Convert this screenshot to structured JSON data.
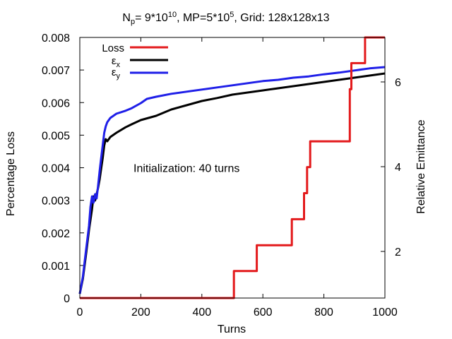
{
  "chart_data": {
    "type": "line",
    "title_parts": {
      "n_prefix": "N",
      "n_sub": "p",
      "n_value": "= 9*10",
      "n_exp": "10",
      "mp_value": ", MP=5*10",
      "mp_exp": "5",
      "grid": ", Grid: 128x128x13"
    },
    "xlabel": "Turns",
    "ylabel": "Percentage Loss",
    "y2label": "Relative Emittance",
    "xlim": [
      0,
      1000
    ],
    "ylim": [
      0,
      0.008
    ],
    "y2lim": [
      0.9,
      7.05
    ],
    "x_ticks": [
      {
        "value": 0,
        "label": "0"
      },
      {
        "value": 200,
        "label": "200"
      },
      {
        "value": 400,
        "label": "400"
      },
      {
        "value": 600,
        "label": "600"
      },
      {
        "value": 800,
        "label": "800"
      },
      {
        "value": 1000,
        "label": "1000"
      }
    ],
    "y_ticks": [
      {
        "value": 0,
        "label": "0"
      },
      {
        "value": 0.001,
        "label": "0.001"
      },
      {
        "value": 0.002,
        "label": "0.002"
      },
      {
        "value": 0.003,
        "label": "0.003"
      },
      {
        "value": 0.004,
        "label": "0.004"
      },
      {
        "value": 0.005,
        "label": "0.005"
      },
      {
        "value": 0.006,
        "label": "0.006"
      },
      {
        "value": 0.007,
        "label": "0.007"
      },
      {
        "value": 0.008,
        "label": "0.008"
      }
    ],
    "y2_ticks": [
      {
        "value": 2,
        "label": "2"
      },
      {
        "value": 4,
        "label": "4"
      },
      {
        "value": 6,
        "label": "6"
      }
    ],
    "annotation": {
      "text": "Initialization: 40 turns",
      "x": 350,
      "y": 0.004
    },
    "legend": {
      "position": "top-left",
      "entries": [
        {
          "label": "Loss",
          "sub": "",
          "series": "Loss"
        },
        {
          "label": "ε",
          "sub": "x",
          "series": "εx"
        },
        {
          "label": "ε",
          "sub": "y",
          "series": "εy"
        }
      ]
    },
    "series": [
      {
        "name": "Loss",
        "axis": "y1",
        "color": "#e31a1c",
        "points": [
          [
            0,
            0
          ],
          [
            505,
            0
          ],
          [
            505,
            0.00083
          ],
          [
            580,
            0.00083
          ],
          [
            580,
            0.00162
          ],
          [
            695,
            0.00162
          ],
          [
            695,
            0.00242
          ],
          [
            735,
            0.00242
          ],
          [
            735,
            0.00322
          ],
          [
            745,
            0.00322
          ],
          [
            745,
            0.00402
          ],
          [
            755,
            0.00402
          ],
          [
            755,
            0.00481
          ],
          [
            885,
            0.00481
          ],
          [
            885,
            0.00641
          ],
          [
            890,
            0.00641
          ],
          [
            890,
            0.00721
          ],
          [
            935,
            0.00721
          ],
          [
            935,
            0.008
          ],
          [
            1000,
            0.008
          ]
        ]
      },
      {
        "name": "εx",
        "axis": "y2",
        "color": "#000000",
        "points": [
          [
            0,
            1.0
          ],
          [
            10,
            1.35
          ],
          [
            20,
            1.9
          ],
          [
            30,
            2.5
          ],
          [
            40,
            3.0
          ],
          [
            45,
            3.3
          ],
          [
            50,
            3.2
          ],
          [
            55,
            3.35
          ],
          [
            60,
            3.5
          ],
          [
            65,
            3.7
          ],
          [
            70,
            3.95
          ],
          [
            75,
            4.2
          ],
          [
            80,
            4.5
          ],
          [
            85,
            4.65
          ],
          [
            90,
            4.6
          ],
          [
            100,
            4.7
          ],
          [
            120,
            4.8
          ],
          [
            150,
            4.93
          ],
          [
            170,
            5.0
          ],
          [
            200,
            5.1
          ],
          [
            250,
            5.2
          ],
          [
            300,
            5.35
          ],
          [
            350,
            5.45
          ],
          [
            400,
            5.55
          ],
          [
            450,
            5.62
          ],
          [
            500,
            5.7
          ],
          [
            550,
            5.75
          ],
          [
            600,
            5.8
          ],
          [
            650,
            5.85
          ],
          [
            700,
            5.9
          ],
          [
            750,
            5.95
          ],
          [
            800,
            6.0
          ],
          [
            850,
            6.05
          ],
          [
            900,
            6.1
          ],
          [
            950,
            6.15
          ],
          [
            1000,
            6.2
          ]
        ]
      },
      {
        "name": "εy",
        "axis": "y2",
        "color": "#1f1fe8",
        "points": [
          [
            0,
            1.0
          ],
          [
            10,
            1.4
          ],
          [
            20,
            2.0
          ],
          [
            30,
            2.6
          ],
          [
            35,
            3.05
          ],
          [
            40,
            3.3
          ],
          [
            45,
            3.15
          ],
          [
            50,
            3.35
          ],
          [
            55,
            3.25
          ],
          [
            60,
            3.55
          ],
          [
            65,
            3.9
          ],
          [
            70,
            4.2
          ],
          [
            75,
            4.5
          ],
          [
            80,
            4.8
          ],
          [
            85,
            4.95
          ],
          [
            90,
            5.05
          ],
          [
            100,
            5.15
          ],
          [
            120,
            5.25
          ],
          [
            150,
            5.32
          ],
          [
            170,
            5.38
          ],
          [
            200,
            5.5
          ],
          [
            220,
            5.6
          ],
          [
            250,
            5.65
          ],
          [
            300,
            5.72
          ],
          [
            350,
            5.77
          ],
          [
            400,
            5.82
          ],
          [
            450,
            5.87
          ],
          [
            500,
            5.92
          ],
          [
            550,
            5.97
          ],
          [
            600,
            6.02
          ],
          [
            650,
            6.05
          ],
          [
            700,
            6.1
          ],
          [
            750,
            6.13
          ],
          [
            800,
            6.18
          ],
          [
            850,
            6.22
          ],
          [
            900,
            6.27
          ],
          [
            950,
            6.32
          ],
          [
            1000,
            6.35
          ]
        ]
      }
    ]
  }
}
